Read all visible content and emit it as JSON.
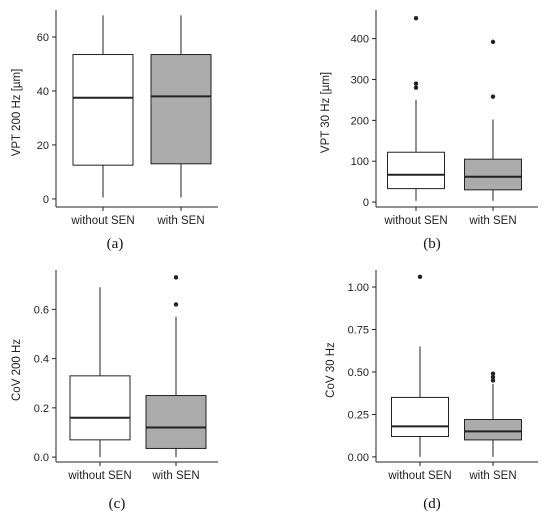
{
  "chart_data": [
    {
      "type": "boxplot",
      "panel_label": "(a)",
      "ylabel": "VPT 200 Hz [µm]",
      "categories": [
        "without SEN",
        "with SEN"
      ],
      "yticks": [
        0,
        20,
        40,
        60
      ],
      "ylim": [
        -3,
        70
      ],
      "boxes": [
        {
          "category": "without SEN",
          "min": 0.5,
          "q1": 12.5,
          "median": 37.5,
          "q3": 53.5,
          "max": 68,
          "outliers": [],
          "fill": "#ffffff"
        },
        {
          "category": "with SEN",
          "min": 0.5,
          "q1": 13,
          "median": 38,
          "q3": 53.5,
          "max": 68,
          "outliers": [],
          "fill": "#ababab"
        }
      ]
    },
    {
      "type": "boxplot",
      "panel_label": "(b)",
      "ylabel": "VPT 30 Hz [µm]",
      "categories": [
        "without SEN",
        "with SEN"
      ],
      "yticks": [
        0,
        100,
        200,
        300,
        400
      ],
      "ylim": [
        -12,
        470
      ],
      "boxes": [
        {
          "category": "without SEN",
          "min": 3,
          "q1": 33,
          "median": 67,
          "q3": 122,
          "max": 250,
          "outliers": [
            280,
            290,
            450
          ],
          "fill": "#ffffff"
        },
        {
          "category": "with SEN",
          "min": 3,
          "q1": 30,
          "median": 62,
          "q3": 105,
          "max": 202,
          "outliers": [
            258,
            392
          ],
          "fill": "#ababab"
        }
      ]
    },
    {
      "type": "boxplot",
      "panel_label": "(c)",
      "ylabel": "CoV 200 Hz",
      "categories": [
        "without SEN",
        "with SEN"
      ],
      "yticks": [
        0.0,
        0.2,
        0.4,
        0.6
      ],
      "ytick_labels": [
        "0.0",
        "0.2",
        "0.4",
        "0.6"
      ],
      "ylim": [
        -0.02,
        0.76
      ],
      "boxes": [
        {
          "category": "without SEN",
          "min": 0.0,
          "q1": 0.07,
          "median": 0.16,
          "q3": 0.33,
          "max": 0.69,
          "outliers": [],
          "fill": "#ffffff"
        },
        {
          "category": "with SEN",
          "min": 0.0,
          "q1": 0.035,
          "median": 0.12,
          "q3": 0.25,
          "max": 0.57,
          "outliers": [
            0.62,
            0.73
          ],
          "fill": "#ababab"
        }
      ]
    },
    {
      "type": "boxplot",
      "panel_label": "(d)",
      "ylabel": "CoV 30 Hz",
      "categories": [
        "without SEN",
        "with SEN"
      ],
      "yticks": [
        0.0,
        0.25,
        0.5,
        0.75,
        1.0
      ],
      "ytick_labels": [
        "0.00",
        "0.25",
        "0.50",
        "0.75",
        "1.00"
      ],
      "ylim": [
        -0.03,
        1.1
      ],
      "boxes": [
        {
          "category": "without SEN",
          "min": 0.0,
          "q1": 0.12,
          "median": 0.18,
          "q3": 0.35,
          "max": 0.65,
          "outliers": [
            1.06
          ],
          "fill": "#ffffff"
        },
        {
          "category": "with SEN",
          "min": 0.0,
          "q1": 0.1,
          "median": 0.15,
          "q3": 0.22,
          "max": 0.43,
          "outliers": [
            0.45,
            0.47,
            0.49
          ],
          "fill": "#ababab"
        }
      ]
    }
  ]
}
